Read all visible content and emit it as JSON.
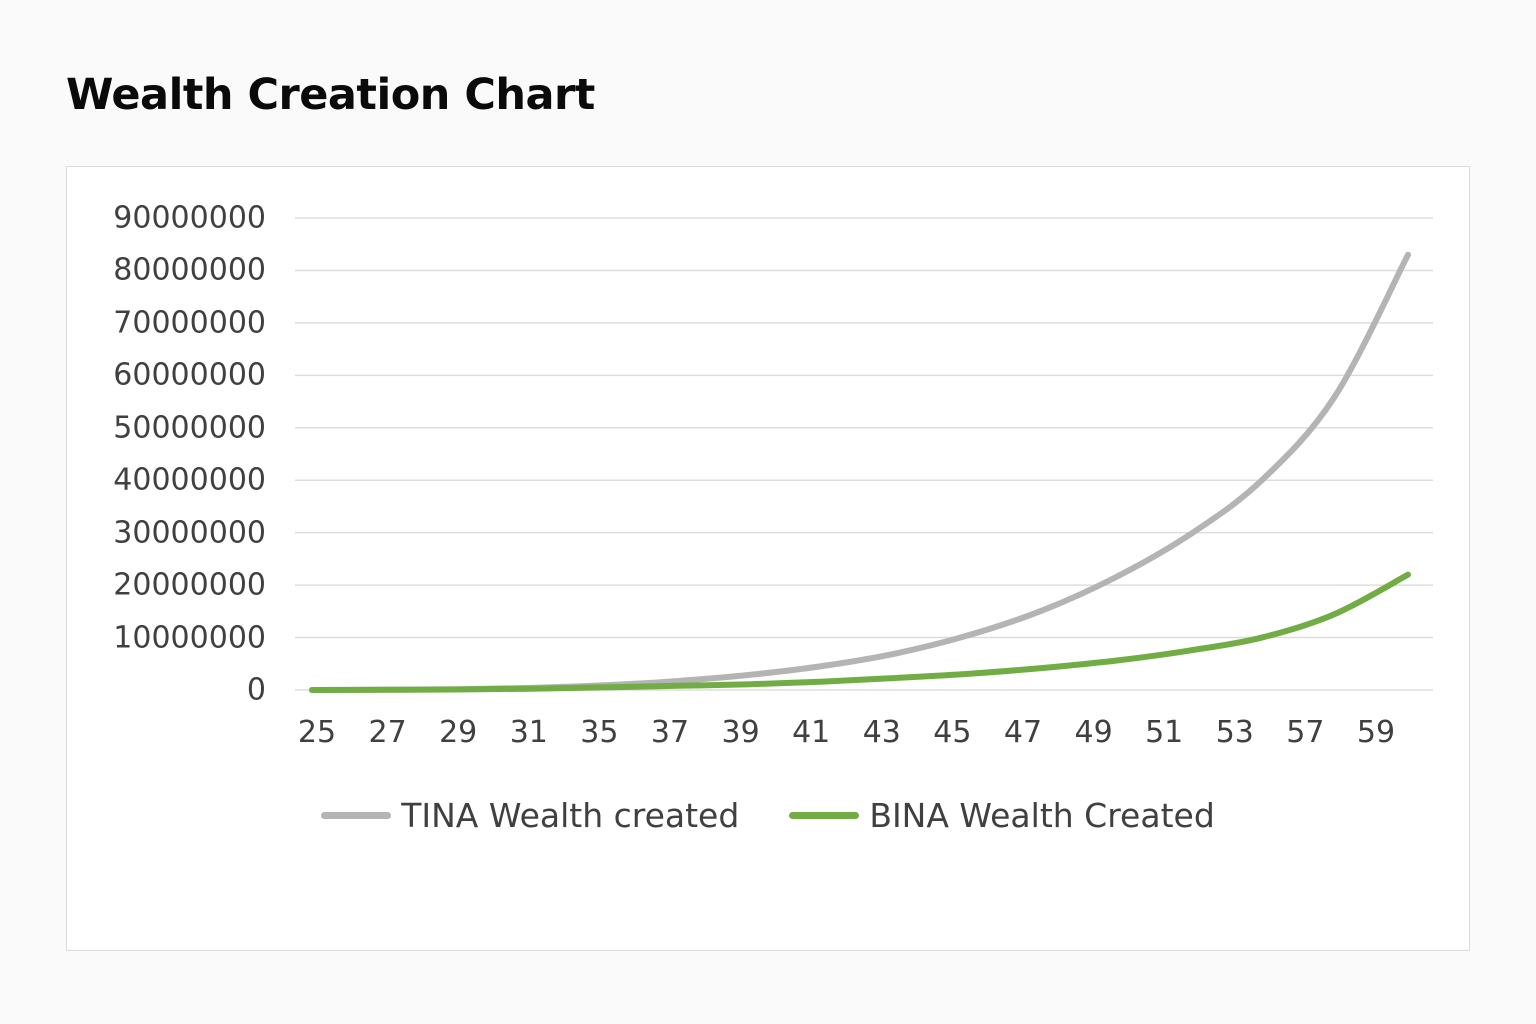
{
  "page": {
    "title": "Wealth Creation Chart"
  },
  "colors": {
    "tina": "#b4b4b4",
    "bina": "#72ac44",
    "grid": "#dddddd",
    "text": "#404040"
  },
  "legend": {
    "items": [
      {
        "label": "TINA Wealth created",
        "color": "#b4b4b4"
      },
      {
        "label": "BINA Wealth Created",
        "color": "#72ac44"
      }
    ]
  },
  "chart_data": {
    "type": "line",
    "title": "Wealth Creation Chart",
    "xlabel": "",
    "ylabel": "",
    "categories": [
      "25",
      "27",
      "29",
      "31",
      "35",
      "37",
      "39",
      "41",
      "43",
      "45",
      "47",
      "49",
      "51",
      "53",
      "57",
      "59"
    ],
    "y_ticks": [
      "0",
      "10000000",
      "20000000",
      "30000000",
      "40000000",
      "50000000",
      "60000000",
      "70000000",
      "80000000",
      "90000000"
    ],
    "ylim": [
      0,
      90000000
    ],
    "grid": true,
    "legend_position": "bottom",
    "series": [
      {
        "name": "TINA Wealth created",
        "color": "#b4b4b4",
        "values": [
          0,
          50000,
          150000,
          400000,
          900000,
          1700000,
          2900000,
          4600000,
          7000000,
          10500000,
          15200000,
          21500000,
          29500000,
          40000000,
          56000000,
          83000000
        ]
      },
      {
        "name": "BINA Wealth Created",
        "color": "#72ac44",
        "values": [
          0,
          40000,
          100000,
          250000,
          500000,
          800000,
          1100000,
          1600000,
          2300000,
          3100000,
          4200000,
          5600000,
          7500000,
          10000000,
          14500000,
          22000000
        ]
      }
    ]
  }
}
